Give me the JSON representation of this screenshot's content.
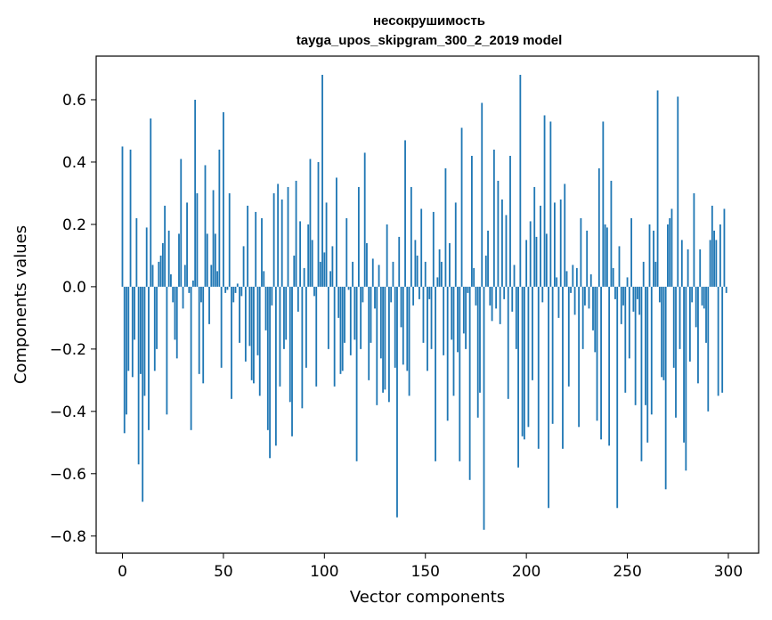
{
  "chart_data": {
    "type": "bar",
    "title": "несокрушимость",
    "subtitle": "tayga_upos_skipgram_300_2_2019 model",
    "xlabel": "Vector components",
    "ylabel": "Components values",
    "xlim": [
      -13,
      315
    ],
    "ylim": [
      -0.855,
      0.74
    ],
    "xticks": [
      0,
      50,
      100,
      150,
      200,
      250,
      300
    ],
    "xtick_labels": [
      "0",
      "50",
      "100",
      "150",
      "200",
      "250",
      "300"
    ],
    "yticks": [
      -0.8,
      -0.6,
      -0.4,
      -0.2,
      0.0,
      0.2,
      0.4,
      0.6
    ],
    "ytick_labels": [
      "−0.8",
      "−0.6",
      "−0.4",
      "−0.2",
      "0.0",
      "0.2",
      "0.4",
      "0.6"
    ],
    "bar_color": "#1f77b4",
    "grid": false,
    "values": [
      0.45,
      -0.47,
      -0.41,
      -0.27,
      0.44,
      -0.29,
      -0.17,
      0.22,
      -0.57,
      -0.28,
      -0.69,
      -0.35,
      0.19,
      -0.46,
      0.54,
      0.07,
      -0.27,
      -0.2,
      0.08,
      0.1,
      0.14,
      0.26,
      -0.41,
      0.18,
      0.04,
      -0.05,
      -0.17,
      -0.23,
      0.17,
      0.41,
      -0.07,
      0.07,
      0.27,
      -0.02,
      -0.46,
      0.02,
      0.6,
      0.3,
      -0.28,
      -0.05,
      -0.31,
      0.39,
      0.17,
      -0.12,
      0.07,
      0.31,
      0.17,
      0.05,
      0.44,
      -0.26,
      0.56,
      -0.02,
      -0.01,
      0.3,
      -0.36,
      -0.05,
      -0.02,
      0.01,
      -0.18,
      -0.03,
      0.13,
      -0.24,
      0.26,
      -0.19,
      -0.3,
      -0.31,
      0.24,
      -0.22,
      -0.35,
      0.22,
      0.05,
      -0.14,
      -0.46,
      -0.55,
      -0.06,
      0.3,
      -0.51,
      0.33,
      -0.32,
      0.28,
      -0.2,
      -0.17,
      0.32,
      -0.37,
      -0.48,
      0.1,
      0.34,
      -0.08,
      0.21,
      -0.39,
      0.06,
      -0.26,
      0.2,
      0.41,
      0.15,
      -0.03,
      -0.32,
      0.4,
      0.08,
      0.68,
      0.11,
      0.27,
      -0.2,
      0.05,
      0.13,
      -0.32,
      0.35,
      -0.1,
      -0.28,
      -0.27,
      -0.18,
      0.22,
      -0.01,
      -0.22,
      0.08,
      -0.17,
      -0.56,
      0.32,
      -0.2,
      -0.05,
      0.43,
      0.14,
      -0.3,
      -0.18,
      0.09,
      -0.07,
      -0.38,
      0.07,
      -0.23,
      -0.34,
      -0.33,
      0.2,
      -0.37,
      -0.05,
      0.08,
      -0.26,
      -0.74,
      0.16,
      -0.13,
      -0.25,
      0.47,
      -0.27,
      -0.35,
      0.32,
      -0.06,
      0.15,
      0.1,
      -0.04,
      0.25,
      -0.18,
      0.08,
      -0.27,
      -0.04,
      -0.2,
      0.24,
      -0.56,
      0.03,
      0.12,
      0.08,
      -0.22,
      0.38,
      -0.43,
      0.14,
      -0.17,
      -0.35,
      0.27,
      -0.21,
      -0.56,
      0.51,
      -0.15,
      -0.2,
      -0.02,
      -0.62,
      0.42,
      0.06,
      -0.06,
      -0.42,
      -0.34,
      0.59,
      -0.78,
      0.1,
      0.18,
      -0.06,
      -0.11,
      0.44,
      -0.07,
      0.34,
      -0.12,
      0.28,
      -0.04,
      0.23,
      -0.36,
      0.42,
      -0.08,
      0.07,
      -0.2,
      -0.58,
      0.68,
      -0.48,
      -0.49,
      0.15,
      -0.45,
      0.21,
      -0.3,
      0.32,
      0.16,
      -0.52,
      0.26,
      -0.05,
      0.55,
      0.17,
      -0.71,
      0.53,
      -0.44,
      0.27,
      0.03,
      -0.1,
      0.28,
      -0.52,
      0.33,
      0.05,
      -0.32,
      -0.02,
      0.07,
      -0.09,
      0.06,
      -0.45,
      0.22,
      -0.2,
      -0.06,
      0.18,
      -0.07,
      0.04,
      -0.14,
      -0.21,
      -0.43,
      0.38,
      -0.49,
      0.53,
      0.2,
      0.19,
      -0.51,
      0.34,
      0.06,
      -0.04,
      -0.71,
      0.13,
      -0.12,
      -0.06,
      -0.34,
      0.03,
      -0.23,
      0.22,
      -0.08,
      -0.38,
      -0.04,
      -0.09,
      -0.56,
      0.08,
      -0.38,
      -0.5,
      0.2,
      -0.41,
      0.18,
      0.08,
      0.63,
      -0.05,
      -0.29,
      -0.3,
      -0.65,
      0.2,
      0.22,
      0.25,
      -0.26,
      -0.42,
      0.61,
      -0.2,
      0.15,
      -0.5,
      -0.59,
      0.12,
      -0.24,
      -0.05,
      0.3,
      -0.13,
      -0.31,
      0.12,
      -0.06,
      -0.07,
      -0.18,
      -0.4,
      0.15,
      0.26,
      0.18,
      0.15,
      -0.35,
      0.2,
      -0.34,
      0.25,
      -0.02
    ]
  }
}
